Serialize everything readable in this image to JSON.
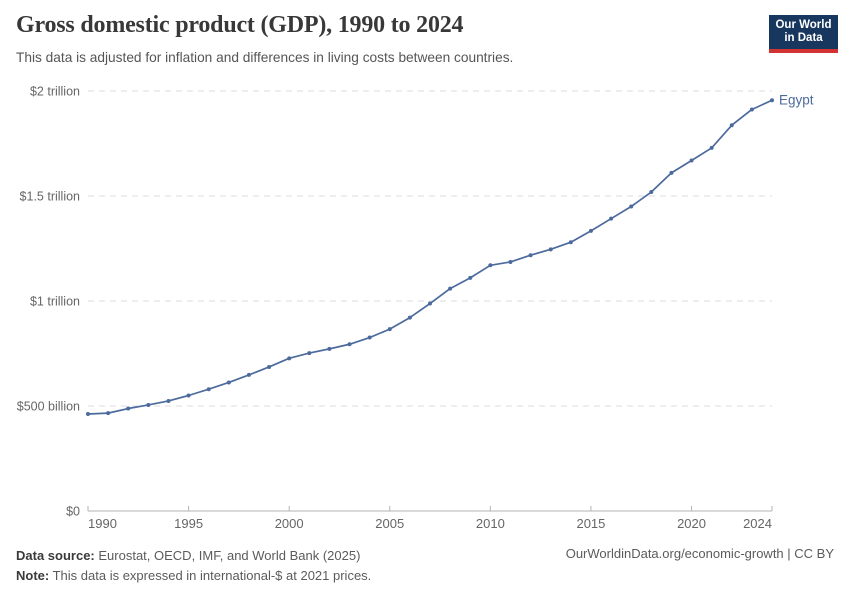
{
  "header": {
    "title": "Gross domestic product (GDP), 1990 to 2024",
    "subtitle": "This data is adjusted for inflation and differences in living costs between countries.",
    "logo": {
      "line1": "Our World",
      "line2": "in Data"
    }
  },
  "chart_data": {
    "type": "line",
    "title": "Gross domestic product (GDP), 1990 to 2024",
    "unit": "international-$ at 2021 prices",
    "grid": true,
    "legend_position": "end-of-line",
    "xlim": [
      1990,
      2024
    ],
    "ylim_billion": [
      0,
      2000
    ],
    "series": [
      {
        "name": "Egypt",
        "color": "#4c6a9c",
        "x": [
          1990,
          1991,
          1992,
          1993,
          1994,
          1995,
          1996,
          1997,
          1998,
          1999,
          2000,
          2001,
          2002,
          2003,
          2004,
          2005,
          2006,
          2007,
          2008,
          2009,
          2010,
          2011,
          2012,
          2013,
          2014,
          2015,
          2016,
          2017,
          2018,
          2019,
          2020,
          2021,
          2022,
          2023,
          2024
        ],
        "values_billion": [
          462,
          466,
          488,
          505,
          524,
          550,
          580,
          612,
          648,
          686,
          727,
          752,
          772,
          794,
          826,
          866,
          921,
          988,
          1059,
          1110,
          1170,
          1186,
          1218,
          1246,
          1280,
          1334,
          1392,
          1450,
          1519,
          1610,
          1669,
          1729,
          1837,
          1912,
          1956
        ]
      }
    ],
    "y_ticks": [
      {
        "value": 0,
        "label": "$0"
      },
      {
        "value": 500,
        "label": "$500 billion"
      },
      {
        "value": 1000,
        "label": "$1 trillion"
      },
      {
        "value": 1500,
        "label": "$1.5 trillion"
      },
      {
        "value": 2000,
        "label": "$2 trillion"
      }
    ],
    "x_ticks": [
      {
        "value": 1990,
        "label": "1990"
      },
      {
        "value": 1995,
        "label": "1995"
      },
      {
        "value": 2000,
        "label": "2000"
      },
      {
        "value": 2005,
        "label": "2005"
      },
      {
        "value": 2010,
        "label": "2010"
      },
      {
        "value": 2015,
        "label": "2015"
      },
      {
        "value": 2020,
        "label": "2020"
      },
      {
        "value": 2024,
        "label": "2024"
      }
    ]
  },
  "footer": {
    "source_label": "Data source:",
    "source_text": "Eurostat, OECD, IMF, and World Bank (2025)",
    "note_label": "Note:",
    "note_text": "This data is expressed in international-$ at 2021 prices.",
    "link_text": "OurWorldinData.org/economic-growth | CC BY"
  },
  "colors": {
    "line": "#4c6a9c",
    "grid": "#dedede",
    "axis": "#b3b3b3",
    "tick_label": "#666666",
    "series_label": "#4c6a9c"
  }
}
